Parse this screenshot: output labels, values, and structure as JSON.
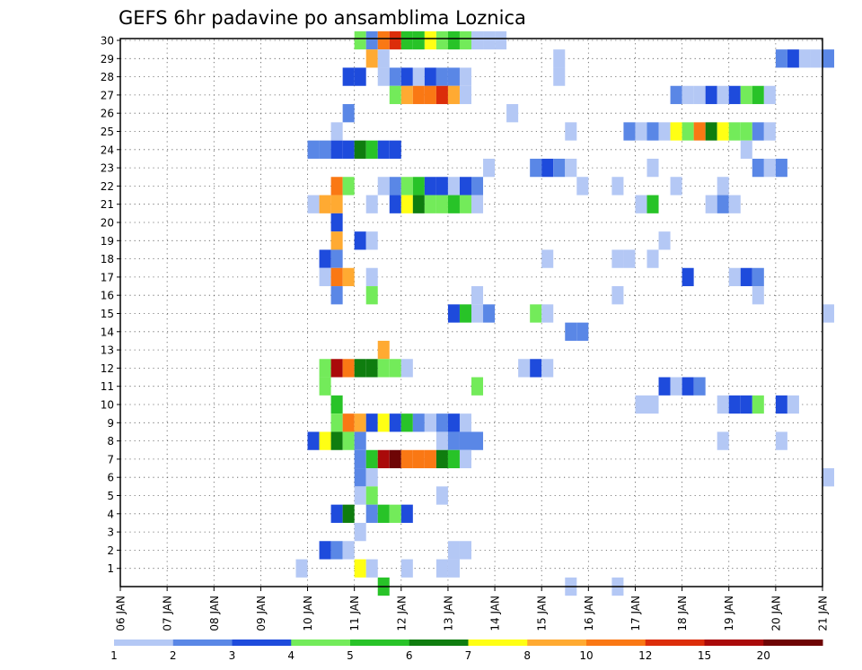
{
  "chart_data": {
    "type": "heatmap",
    "title": "GEFS 6hr padavine po ansamblima Loznica",
    "xlabel": "",
    "ylabel": "",
    "x_ticks": [
      "06 JAN",
      "07 JAN",
      "08 JAN",
      "09 JAN",
      "10 JAN",
      "11 JAN",
      "12 JAN",
      "13 JAN",
      "14 JAN",
      "15 JAN",
      "16 JAN",
      "17 JAN",
      "18 JAN",
      "19 JAN",
      "20 JAN",
      "21 JAN"
    ],
    "y_ticks": [
      1,
      2,
      3,
      4,
      5,
      6,
      7,
      8,
      9,
      10,
      11,
      12,
      13,
      14,
      15,
      16,
      17,
      18,
      19,
      20,
      21,
      22,
      23,
      24,
      25,
      26,
      27,
      28,
      29,
      30
    ],
    "xlim": [
      "06 JAN 00Z",
      "21 JAN 00Z"
    ],
    "ylim": [
      0,
      30
    ],
    "grid": true,
    "time_step_hours": 6,
    "colorbar": {
      "levels": [
        "1",
        "2",
        "3",
        "4",
        "5",
        "6",
        "7",
        "8",
        "10",
        "12",
        "15",
        "20"
      ],
      "colors": [
        "#b4c8f5",
        "#5a87e6",
        "#1e4bdc",
        "#73eb5a",
        "#28c328",
        "#0f7d0f",
        "#ffff14",
        "#ffaa32",
        "#fa7814",
        "#dc2d0a",
        "#aa0a0a",
        "#6e0505"
      ]
    },
    "cells": [
      {
        "m": 30,
        "d": "11 JAN 00Z",
        "c": 4
      },
      {
        "m": 30,
        "d": "11 JAN 06Z",
        "c": 2
      },
      {
        "m": 30,
        "d": "11 JAN 12Z",
        "c": 9
      },
      {
        "m": 30,
        "d": "11 JAN 18Z",
        "c": 10
      },
      {
        "m": 30,
        "d": "12 JAN 00Z",
        "c": 5
      },
      {
        "m": 30,
        "d": "12 JAN 06Z",
        "c": 5
      },
      {
        "m": 30,
        "d": "12 JAN 12Z",
        "c": 7
      },
      {
        "m": 30,
        "d": "12 JAN 18Z",
        "c": 4
      },
      {
        "m": 30,
        "d": "13 JAN 00Z",
        "c": 5
      },
      {
        "m": 30,
        "d": "13 JAN 06Z",
        "c": 4
      },
      {
        "m": 30,
        "d": "13 JAN 12Z",
        "c": 1
      },
      {
        "m": 30,
        "d": "13 JAN 18Z",
        "c": 1
      },
      {
        "m": 30,
        "d": "14 JAN 00Z",
        "c": 1
      },
      {
        "m": 29,
        "d": "11 JAN 06Z",
        "c": 8
      },
      {
        "m": 29,
        "d": "11 JAN 12Z",
        "c": 1
      },
      {
        "m": 29,
        "d": "15 JAN 06Z",
        "c": 1
      },
      {
        "m": 29,
        "d": "20 JAN 00Z",
        "c": 2
      },
      {
        "m": 29,
        "d": "20 JAN 06Z",
        "c": 3
      },
      {
        "m": 29,
        "d": "20 JAN 12Z",
        "c": 1
      },
      {
        "m": 29,
        "d": "20 JAN 18Z",
        "c": 1
      },
      {
        "m": 29,
        "d": "21 JAN 00Z",
        "c": 2
      },
      {
        "m": 28,
        "d": "10 JAN 18Z",
        "c": 3
      },
      {
        "m": 28,
        "d": "11 JAN 00Z",
        "c": 3
      },
      {
        "m": 28,
        "d": "11 JAN 12Z",
        "c": 1
      },
      {
        "m": 28,
        "d": "11 JAN 18Z",
        "c": 2
      },
      {
        "m": 28,
        "d": "12 JAN 00Z",
        "c": 3
      },
      {
        "m": 28,
        "d": "12 JAN 06Z",
        "c": 1
      },
      {
        "m": 28,
        "d": "12 JAN 12Z",
        "c": 3
      },
      {
        "m": 28,
        "d": "12 JAN 18Z",
        "c": 2
      },
      {
        "m": 28,
        "d": "13 JAN 00Z",
        "c": 2
      },
      {
        "m": 28,
        "d": "13 JAN 06Z",
        "c": 1
      },
      {
        "m": 28,
        "d": "15 JAN 06Z",
        "c": 1
      },
      {
        "m": 27,
        "d": "11 JAN 18Z",
        "c": 4
      },
      {
        "m": 27,
        "d": "12 JAN 00Z",
        "c": 8
      },
      {
        "m": 27,
        "d": "12 JAN 06Z",
        "c": 9
      },
      {
        "m": 27,
        "d": "12 JAN 12Z",
        "c": 9
      },
      {
        "m": 27,
        "d": "12 JAN 18Z",
        "c": 10
      },
      {
        "m": 27,
        "d": "13 JAN 00Z",
        "c": 8
      },
      {
        "m": 27,
        "d": "13 JAN 06Z",
        "c": 1
      },
      {
        "m": 27,
        "d": "17 JAN 18Z",
        "c": 2
      },
      {
        "m": 27,
        "d": "18 JAN 00Z",
        "c": 1
      },
      {
        "m": 27,
        "d": "18 JAN 06Z",
        "c": 1
      },
      {
        "m": 27,
        "d": "18 JAN 12Z",
        "c": 3
      },
      {
        "m": 27,
        "d": "18 JAN 18Z",
        "c": 1
      },
      {
        "m": 27,
        "d": "19 JAN 00Z",
        "c": 3
      },
      {
        "m": 27,
        "d": "19 JAN 06Z",
        "c": 4
      },
      {
        "m": 27,
        "d": "19 JAN 12Z",
        "c": 5
      },
      {
        "m": 27,
        "d": "19 JAN 18Z",
        "c": 1
      },
      {
        "m": 26,
        "d": "10 JAN 18Z",
        "c": 2
      },
      {
        "m": 26,
        "d": "14 JAN 06Z",
        "c": 1
      },
      {
        "m": 25,
        "d": "10 JAN 12Z",
        "c": 1
      },
      {
        "m": 25,
        "d": "15 JAN 12Z",
        "c": 1
      },
      {
        "m": 25,
        "d": "16 JAN 18Z",
        "c": 2
      },
      {
        "m": 25,
        "d": "17 JAN 00Z",
        "c": 1
      },
      {
        "m": 25,
        "d": "17 JAN 06Z",
        "c": 2
      },
      {
        "m": 25,
        "d": "17 JAN 12Z",
        "c": 1
      },
      {
        "m": 25,
        "d": "17 JAN 18Z",
        "c": 7
      },
      {
        "m": 25,
        "d": "18 JAN 00Z",
        "c": 4
      },
      {
        "m": 25,
        "d": "18 JAN 06Z",
        "c": 9
      },
      {
        "m": 25,
        "d": "18 JAN 12Z",
        "c": 6
      },
      {
        "m": 25,
        "d": "18 JAN 18Z",
        "c": 7
      },
      {
        "m": 25,
        "d": "19 JAN 00Z",
        "c": 4
      },
      {
        "m": 25,
        "d": "19 JAN 06Z",
        "c": 4
      },
      {
        "m": 25,
        "d": "19 JAN 12Z",
        "c": 2
      },
      {
        "m": 25,
        "d": "19 JAN 18Z",
        "c": 1
      },
      {
        "m": 24,
        "d": "10 JAN 00Z",
        "c": 2
      },
      {
        "m": 24,
        "d": "10 JAN 06Z",
        "c": 2
      },
      {
        "m": 24,
        "d": "10 JAN 12Z",
        "c": 3
      },
      {
        "m": 24,
        "d": "10 JAN 18Z",
        "c": 3
      },
      {
        "m": 24,
        "d": "11 JAN 00Z",
        "c": 6
      },
      {
        "m": 24,
        "d": "11 JAN 06Z",
        "c": 5
      },
      {
        "m": 24,
        "d": "11 JAN 12Z",
        "c": 3
      },
      {
        "m": 24,
        "d": "11 JAN 18Z",
        "c": 3
      },
      {
        "m": 24,
        "d": "19 JAN 06Z",
        "c": 1
      },
      {
        "m": 23,
        "d": "13 JAN 18Z",
        "c": 1
      },
      {
        "m": 23,
        "d": "14 JAN 18Z",
        "c": 2
      },
      {
        "m": 23,
        "d": "15 JAN 00Z",
        "c": 3
      },
      {
        "m": 23,
        "d": "15 JAN 06Z",
        "c": 2
      },
      {
        "m": 23,
        "d": "15 JAN 12Z",
        "c": 1
      },
      {
        "m": 23,
        "d": "17 JAN 06Z",
        "c": 1
      },
      {
        "m": 23,
        "d": "19 JAN 12Z",
        "c": 2
      },
      {
        "m": 23,
        "d": "19 JAN 18Z",
        "c": 1
      },
      {
        "m": 23,
        "d": "20 JAN 00Z",
        "c": 2
      },
      {
        "m": 22,
        "d": "10 JAN 12Z",
        "c": 9
      },
      {
        "m": 22,
        "d": "10 JAN 18Z",
        "c": 4
      },
      {
        "m": 22,
        "d": "11 JAN 12Z",
        "c": 1
      },
      {
        "m": 22,
        "d": "11 JAN 18Z",
        "c": 2
      },
      {
        "m": 22,
        "d": "12 JAN 00Z",
        "c": 4
      },
      {
        "m": 22,
        "d": "12 JAN 06Z",
        "c": 5
      },
      {
        "m": 22,
        "d": "12 JAN 12Z",
        "c": 3
      },
      {
        "m": 22,
        "d": "12 JAN 18Z",
        "c": 3
      },
      {
        "m": 22,
        "d": "13 JAN 00Z",
        "c": 1
      },
      {
        "m": 22,
        "d": "13 JAN 06Z",
        "c": 3
      },
      {
        "m": 22,
        "d": "13 JAN 12Z",
        "c": 2
      },
      {
        "m": 22,
        "d": "15 JAN 18Z",
        "c": 1
      },
      {
        "m": 22,
        "d": "16 JAN 12Z",
        "c": 1
      },
      {
        "m": 22,
        "d": "17 JAN 18Z",
        "c": 1
      },
      {
        "m": 22,
        "d": "18 JAN 18Z",
        "c": 1
      },
      {
        "m": 21,
        "d": "10 JAN 00Z",
        "c": 1
      },
      {
        "m": 21,
        "d": "10 JAN 06Z",
        "c": 8
      },
      {
        "m": 21,
        "d": "10 JAN 12Z",
        "c": 8
      },
      {
        "m": 21,
        "d": "11 JAN 06Z",
        "c": 1
      },
      {
        "m": 21,
        "d": "11 JAN 18Z",
        "c": 3
      },
      {
        "m": 21,
        "d": "12 JAN 00Z",
        "c": 7
      },
      {
        "m": 21,
        "d": "12 JAN 06Z",
        "c": 6
      },
      {
        "m": 21,
        "d": "12 JAN 12Z",
        "c": 4
      },
      {
        "m": 21,
        "d": "12 JAN 18Z",
        "c": 4
      },
      {
        "m": 21,
        "d": "13 JAN 00Z",
        "c": 5
      },
      {
        "m": 21,
        "d": "13 JAN 06Z",
        "c": 4
      },
      {
        "m": 21,
        "d": "13 JAN 12Z",
        "c": 1
      },
      {
        "m": 21,
        "d": "17 JAN 00Z",
        "c": 1
      },
      {
        "m": 21,
        "d": "17 JAN 06Z",
        "c": 5
      },
      {
        "m": 21,
        "d": "18 JAN 12Z",
        "c": 1
      },
      {
        "m": 21,
        "d": "18 JAN 18Z",
        "c": 2
      },
      {
        "m": 21,
        "d": "19 JAN 00Z",
        "c": 1
      },
      {
        "m": 20,
        "d": "10 JAN 12Z",
        "c": 3
      },
      {
        "m": 19,
        "d": "10 JAN 12Z",
        "c": 8
      },
      {
        "m": 19,
        "d": "11 JAN 00Z",
        "c": 3
      },
      {
        "m": 19,
        "d": "11 JAN 06Z",
        "c": 1
      },
      {
        "m": 19,
        "d": "17 JAN 12Z",
        "c": 1
      },
      {
        "m": 18,
        "d": "10 JAN 06Z",
        "c": 3
      },
      {
        "m": 18,
        "d": "10 JAN 12Z",
        "c": 2
      },
      {
        "m": 18,
        "d": "15 JAN 00Z",
        "c": 1
      },
      {
        "m": 18,
        "d": "16 JAN 12Z",
        "c": 1
      },
      {
        "m": 18,
        "d": "16 JAN 18Z",
        "c": 1
      },
      {
        "m": 18,
        "d": "17 JAN 06Z",
        "c": 1
      },
      {
        "m": 17,
        "d": "10 JAN 06Z",
        "c": 1
      },
      {
        "m": 17,
        "d": "10 JAN 12Z",
        "c": 9
      },
      {
        "m": 17,
        "d": "10 JAN 18Z",
        "c": 8
      },
      {
        "m": 17,
        "d": "11 JAN 06Z",
        "c": 1
      },
      {
        "m": 17,
        "d": "18 JAN 00Z",
        "c": 3
      },
      {
        "m": 17,
        "d": "19 JAN 00Z",
        "c": 1
      },
      {
        "m": 17,
        "d": "19 JAN 06Z",
        "c": 3
      },
      {
        "m": 17,
        "d": "19 JAN 12Z",
        "c": 2
      },
      {
        "m": 16,
        "d": "10 JAN 12Z",
        "c": 2
      },
      {
        "m": 16,
        "d": "11 JAN 06Z",
        "c": 4
      },
      {
        "m": 16,
        "d": "13 JAN 12Z",
        "c": 1
      },
      {
        "m": 16,
        "d": "16 JAN 12Z",
        "c": 1
      },
      {
        "m": 16,
        "d": "19 JAN 12Z",
        "c": 1
      },
      {
        "m": 15,
        "d": "13 JAN 00Z",
        "c": 3
      },
      {
        "m": 15,
        "d": "13 JAN 06Z",
        "c": 5
      },
      {
        "m": 15,
        "d": "13 JAN 12Z",
        "c": 1
      },
      {
        "m": 15,
        "d": "13 JAN 18Z",
        "c": 2
      },
      {
        "m": 15,
        "d": "14 JAN 18Z",
        "c": 4
      },
      {
        "m": 15,
        "d": "15 JAN 00Z",
        "c": 1
      },
      {
        "m": 15,
        "d": "21 JAN 00Z",
        "c": 1
      },
      {
        "m": 14,
        "d": "15 JAN 12Z",
        "c": 2
      },
      {
        "m": 14,
        "d": "15 JAN 18Z",
        "c": 2
      },
      {
        "m": 13,
        "d": "11 JAN 12Z",
        "c": 8
      },
      {
        "m": 12,
        "d": "10 JAN 06Z",
        "c": 4
      },
      {
        "m": 12,
        "d": "10 JAN 12Z",
        "c": 11
      },
      {
        "m": 12,
        "d": "10 JAN 18Z",
        "c": 9
      },
      {
        "m": 12,
        "d": "11 JAN 00Z",
        "c": 6
      },
      {
        "m": 12,
        "d": "11 JAN 06Z",
        "c": 6
      },
      {
        "m": 12,
        "d": "11 JAN 12Z",
        "c": 4
      },
      {
        "m": 12,
        "d": "11 JAN 18Z",
        "c": 4
      },
      {
        "m": 12,
        "d": "12 JAN 00Z",
        "c": 1
      },
      {
        "m": 12,
        "d": "14 JAN 12Z",
        "c": 1
      },
      {
        "m": 12,
        "d": "14 JAN 18Z",
        "c": 3
      },
      {
        "m": 12,
        "d": "15 JAN 00Z",
        "c": 1
      },
      {
        "m": 11,
        "d": "10 JAN 06Z",
        "c": 4
      },
      {
        "m": 11,
        "d": "13 JAN 12Z",
        "c": 4
      },
      {
        "m": 11,
        "d": "17 JAN 12Z",
        "c": 3
      },
      {
        "m": 11,
        "d": "17 JAN 18Z",
        "c": 1
      },
      {
        "m": 11,
        "d": "18 JAN 00Z",
        "c": 3
      },
      {
        "m": 11,
        "d": "18 JAN 06Z",
        "c": 2
      },
      {
        "m": 10,
        "d": "10 JAN 12Z",
        "c": 5
      },
      {
        "m": 10,
        "d": "17 JAN 00Z",
        "c": 1
      },
      {
        "m": 10,
        "d": "17 JAN 06Z",
        "c": 1
      },
      {
        "m": 10,
        "d": "18 JAN 18Z",
        "c": 1
      },
      {
        "m": 10,
        "d": "19 JAN 00Z",
        "c": 3
      },
      {
        "m": 10,
        "d": "19 JAN 06Z",
        "c": 3
      },
      {
        "m": 10,
        "d": "19 JAN 12Z",
        "c": 4
      },
      {
        "m": 10,
        "d": "20 JAN 00Z",
        "c": 3
      },
      {
        "m": 10,
        "d": "20 JAN 06Z",
        "c": 1
      },
      {
        "m": 9,
        "d": "10 JAN 12Z",
        "c": 4
      },
      {
        "m": 9,
        "d": "10 JAN 18Z",
        "c": 9
      },
      {
        "m": 9,
        "d": "11 JAN 00Z",
        "c": 8
      },
      {
        "m": 9,
        "d": "11 JAN 06Z",
        "c": 3
      },
      {
        "m": 9,
        "d": "11 JAN 12Z",
        "c": 7
      },
      {
        "m": 9,
        "d": "11 JAN 18Z",
        "c": 3
      },
      {
        "m": 9,
        "d": "12 JAN 00Z",
        "c": 5
      },
      {
        "m": 9,
        "d": "12 JAN 06Z",
        "c": 2
      },
      {
        "m": 9,
        "d": "12 JAN 12Z",
        "c": 1
      },
      {
        "m": 9,
        "d": "12 JAN 18Z",
        "c": 2
      },
      {
        "m": 9,
        "d": "13 JAN 00Z",
        "c": 3
      },
      {
        "m": 9,
        "d": "13 JAN 06Z",
        "c": 1
      },
      {
        "m": 8,
        "d": "10 JAN 00Z",
        "c": 3
      },
      {
        "m": 8,
        "d": "10 JAN 06Z",
        "c": 7
      },
      {
        "m": 8,
        "d": "10 JAN 12Z",
        "c": 6
      },
      {
        "m": 8,
        "d": "10 JAN 18Z",
        "c": 4
      },
      {
        "m": 8,
        "d": "11 JAN 00Z",
        "c": 2
      },
      {
        "m": 8,
        "d": "12 JAN 18Z",
        "c": 1
      },
      {
        "m": 8,
        "d": "13 JAN 00Z",
        "c": 2
      },
      {
        "m": 8,
        "d": "13 JAN 06Z",
        "c": 2
      },
      {
        "m": 8,
        "d": "13 JAN 12Z",
        "c": 2
      },
      {
        "m": 8,
        "d": "18 JAN 18Z",
        "c": 1
      },
      {
        "m": 8,
        "d": "20 JAN 00Z",
        "c": 1
      },
      {
        "m": 7,
        "d": "11 JAN 00Z",
        "c": 2
      },
      {
        "m": 7,
        "d": "11 JAN 06Z",
        "c": 5
      },
      {
        "m": 7,
        "d": "11 JAN 12Z",
        "c": 11
      },
      {
        "m": 7,
        "d": "11 JAN 18Z",
        "c": 12
      },
      {
        "m": 7,
        "d": "12 JAN 00Z",
        "c": 9
      },
      {
        "m": 7,
        "d": "12 JAN 06Z",
        "c": 9
      },
      {
        "m": 7,
        "d": "12 JAN 12Z",
        "c": 9
      },
      {
        "m": 7,
        "d": "12 JAN 18Z",
        "c": 6
      },
      {
        "m": 7,
        "d": "13 JAN 00Z",
        "c": 5
      },
      {
        "m": 7,
        "d": "13 JAN 06Z",
        "c": 1
      },
      {
        "m": 6,
        "d": "11 JAN 00Z",
        "c": 2
      },
      {
        "m": 6,
        "d": "11 JAN 06Z",
        "c": 1
      },
      {
        "m": 6,
        "d": "21 JAN 00Z",
        "c": 1
      },
      {
        "m": 5,
        "d": "11 JAN 00Z",
        "c": 1
      },
      {
        "m": 5,
        "d": "11 JAN 06Z",
        "c": 4
      },
      {
        "m": 5,
        "d": "12 JAN 18Z",
        "c": 1
      },
      {
        "m": 4,
        "d": "10 JAN 12Z",
        "c": 3
      },
      {
        "m": 4,
        "d": "10 JAN 18Z",
        "c": 6
      },
      {
        "m": 4,
        "d": "11 JAN 06Z",
        "c": 2
      },
      {
        "m": 4,
        "d": "11 JAN 12Z",
        "c": 5
      },
      {
        "m": 4,
        "d": "11 JAN 18Z",
        "c": 4
      },
      {
        "m": 4,
        "d": "12 JAN 00Z",
        "c": 3
      },
      {
        "m": 3,
        "d": "11 JAN 00Z",
        "c": 1
      },
      {
        "m": 2,
        "d": "10 JAN 06Z",
        "c": 3
      },
      {
        "m": 2,
        "d": "10 JAN 12Z",
        "c": 2
      },
      {
        "m": 2,
        "d": "10 JAN 18Z",
        "c": 1
      },
      {
        "m": 2,
        "d": "13 JAN 00Z",
        "c": 1
      },
      {
        "m": 2,
        "d": "13 JAN 06Z",
        "c": 1
      },
      {
        "m": 1,
        "d": "09 JAN 18Z",
        "c": 1
      },
      {
        "m": 1,
        "d": "11 JAN 00Z",
        "c": 7
      },
      {
        "m": 1,
        "d": "11 JAN 06Z",
        "c": 1
      },
      {
        "m": 1,
        "d": "12 JAN 00Z",
        "c": 1
      },
      {
        "m": 1,
        "d": "12 JAN 18Z",
        "c": 1
      },
      {
        "m": 1,
        "d": "13 JAN 00Z",
        "c": 1
      },
      {
        "m": 0,
        "d": "11 JAN 12Z",
        "c": 5
      },
      {
        "m": 0,
        "d": "15 JAN 12Z",
        "c": 1
      },
      {
        "m": 0,
        "d": "16 JAN 12Z",
        "c": 1
      }
    ]
  }
}
